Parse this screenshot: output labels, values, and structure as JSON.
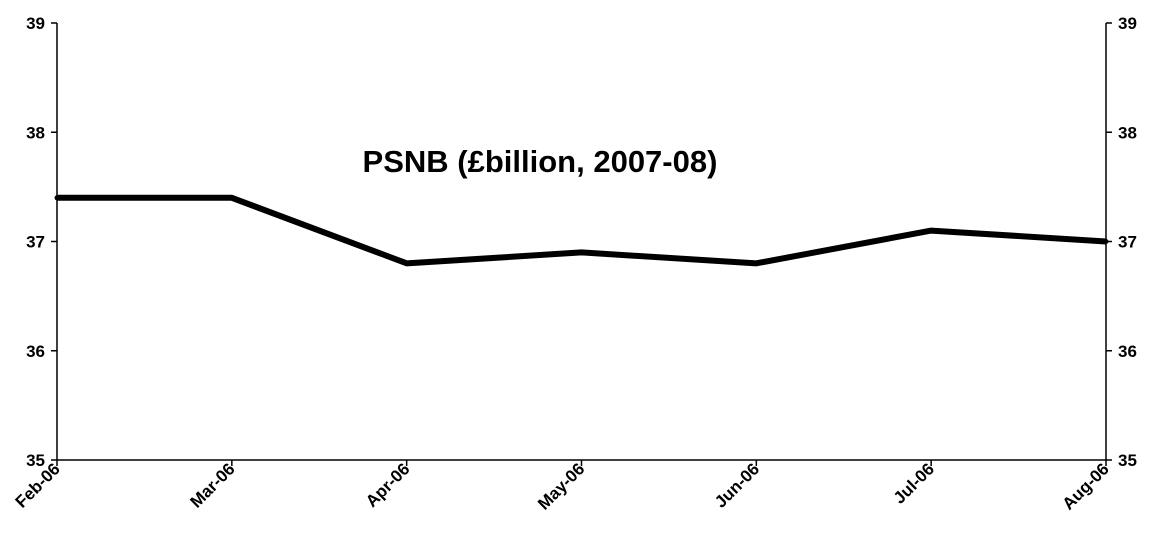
{
  "chart_data": {
    "type": "line",
    "title": "PSNB (£billion, 2007-08)",
    "xlabel": "",
    "ylabel": "",
    "categories": [
      "Feb-06",
      "Mar-06",
      "Apr-06",
      "May-06",
      "Jun-06",
      "Jul-06",
      "Aug-06"
    ],
    "series": [
      {
        "values": [
          37.4,
          37.4,
          36.8,
          36.9,
          36.8,
          37.1,
          37.0
        ]
      }
    ],
    "ylim": [
      35,
      39
    ],
    "yticks": [
      35,
      36,
      37,
      38,
      39
    ],
    "y_axis_left": true,
    "y_axis_right": true,
    "grid": false,
    "legend": "none",
    "line_color": "#000000"
  }
}
